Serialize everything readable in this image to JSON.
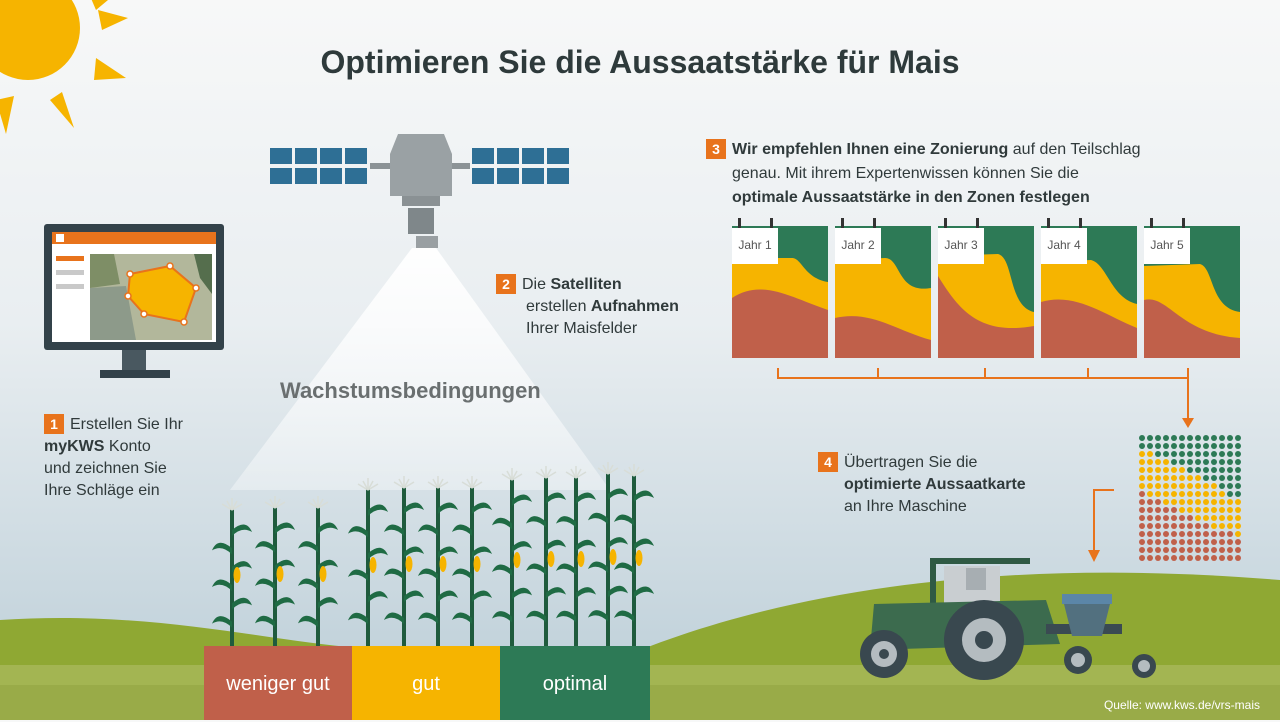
{
  "title": "Optimieren Sie die Aussaatstärke für Mais",
  "step1": {
    "number": "1",
    "line1": "Erstellen Sie Ihr",
    "bold": "myKWS",
    "line2_rest": " Konto",
    "line3": "und zeichnen Sie",
    "line4": "Ihre Schläge ein"
  },
  "step2": {
    "number": "2",
    "prefix": "Die ",
    "bold1": "Satelliten",
    "line2_prefix": "erstellen ",
    "bold2": "Aufnahmen",
    "line3": "Ihrer Maisfelder"
  },
  "step3": {
    "number": "3",
    "bold1": "Wir empfehlen Ihnen eine Zonierung",
    "rest1": " auf den Teilschlag",
    "line2": "genau. Mit ihrem Expertenwissen können Sie die",
    "bold2": "optimale Aussaatstärke in den Zonen festlegen"
  },
  "step4": {
    "number": "4",
    "line1": "Übertragen Sie die",
    "bold": "optimierte Aussaatkarte",
    "line3": "an Ihre Maschine"
  },
  "beam_label": "Wachstumsbedingungen",
  "years": [
    "Jahr 1",
    "Jahr 2",
    "Jahr 3",
    "Jahr 4",
    "Jahr 5"
  ],
  "conditions": [
    {
      "label": "weniger gut",
      "color": "#c0604a"
    },
    {
      "label": "gut",
      "color": "#f6b400"
    },
    {
      "label": "optimal",
      "color": "#2d7a56"
    }
  ],
  "source": "Quelle: www.kws.de/vrs-mais",
  "colors": {
    "accent": "#e8731c",
    "green": "#2d7a56",
    "yellow": "#f6b400",
    "red": "#c0604a"
  }
}
